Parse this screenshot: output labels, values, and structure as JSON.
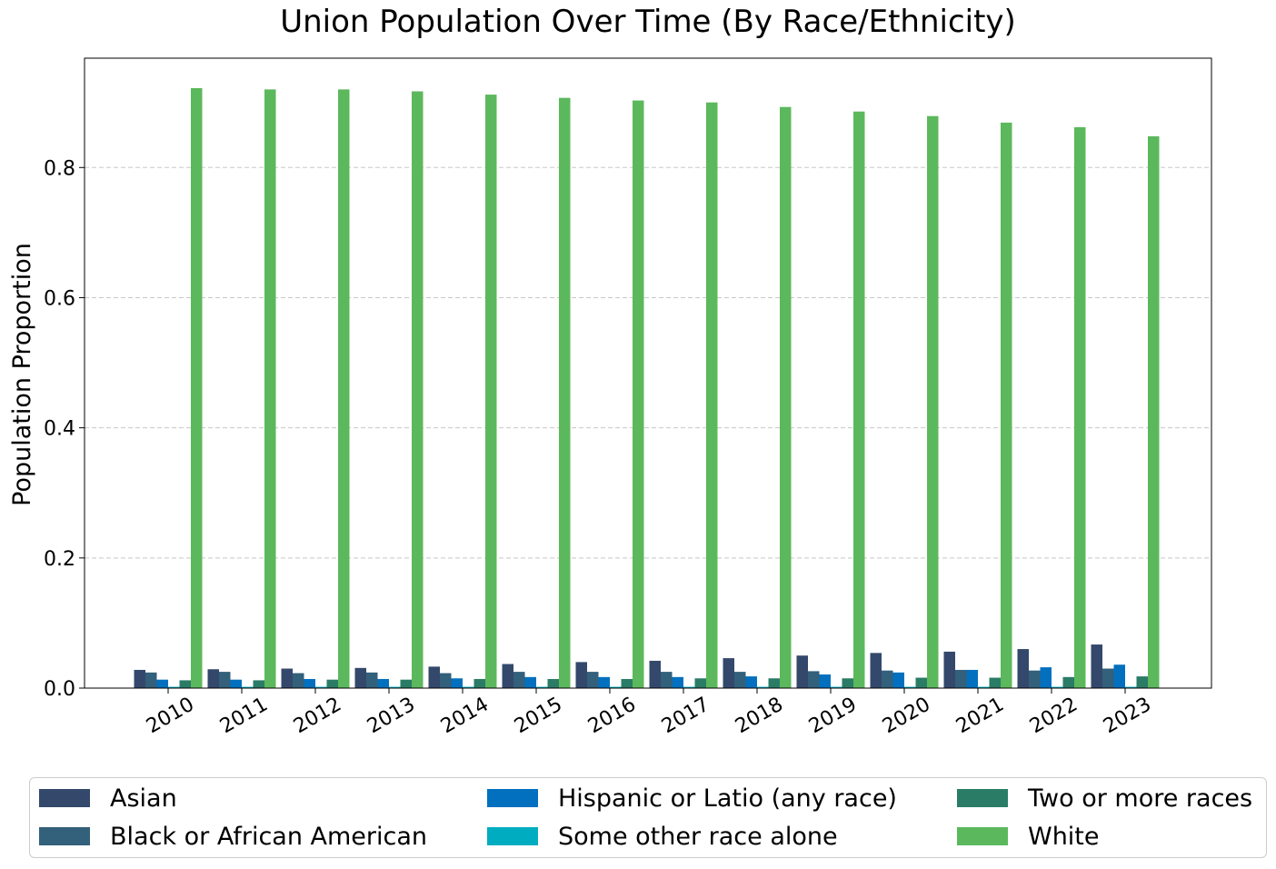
{
  "chart_data": {
    "type": "bar",
    "title": "Union Population Over Time (By Race/Ethnicity)",
    "xlabel": "",
    "ylabel": "Population Proportion",
    "ylim": [
      0.0,
      0.968
    ],
    "yticks": [
      0.0,
      0.2,
      0.4,
      0.6,
      0.8
    ],
    "ytick_labels": [
      "0.0",
      "0.2",
      "0.4",
      "0.6",
      "0.8"
    ],
    "grid": "y-dashed",
    "legend_position": "bottom",
    "categories": [
      "2010",
      "2011",
      "2012",
      "2013",
      "2014",
      "2015",
      "2016",
      "2017",
      "2018",
      "2019",
      "2020",
      "2021",
      "2022",
      "2023"
    ],
    "series": [
      {
        "name": "Asian",
        "color": "#34486c",
        "values": [
          0.028,
          0.029,
          0.03,
          0.031,
          0.033,
          0.037,
          0.04,
          0.042,
          0.046,
          0.05,
          0.054,
          0.056,
          0.06,
          0.067
        ]
      },
      {
        "name": "Black or African American",
        "color": "#33607a",
        "values": [
          0.024,
          0.025,
          0.023,
          0.024,
          0.023,
          0.025,
          0.025,
          0.025,
          0.025,
          0.026,
          0.027,
          0.028,
          0.027,
          0.03
        ]
      },
      {
        "name": "Hispanic or Latio (any race)",
        "color": "#0270bf",
        "values": [
          0.013,
          0.013,
          0.014,
          0.014,
          0.015,
          0.017,
          0.017,
          0.017,
          0.018,
          0.021,
          0.024,
          0.028,
          0.032,
          0.036
        ]
      },
      {
        "name": "Some other race alone",
        "color": "#00adc0",
        "values": [
          0.002,
          0.002,
          0.002,
          0.002,
          0.002,
          0.002,
          0.002,
          0.002,
          0.002,
          0.002,
          0.002,
          0.002,
          0.002,
          0.002
        ]
      },
      {
        "name": "Two or more races",
        "color": "#2a7c66",
        "values": [
          0.012,
          0.012,
          0.013,
          0.013,
          0.014,
          0.014,
          0.014,
          0.015,
          0.015,
          0.015,
          0.016,
          0.016,
          0.017,
          0.018
        ]
      },
      {
        "name": "White",
        "color": "#5cb85c",
        "values": [
          0.922,
          0.92,
          0.92,
          0.917,
          0.912,
          0.907,
          0.903,
          0.9,
          0.893,
          0.886,
          0.879,
          0.869,
          0.862,
          0.848
        ]
      }
    ]
  }
}
